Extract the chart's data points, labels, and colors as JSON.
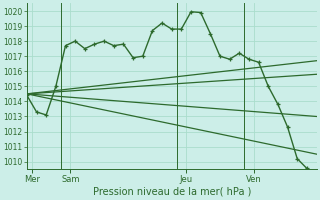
{
  "bg_color": "#cceee8",
  "grid_color": "#aaddcc",
  "line_color": "#2d6a2d",
  "title": "Pression niveau de la mer( hPa )",
  "ylim": [
    1009.5,
    1020.5
  ],
  "yticks": [
    1010,
    1011,
    1012,
    1013,
    1014,
    1015,
    1016,
    1017,
    1018,
    1019,
    1020
  ],
  "xlim": [
    0,
    30
  ],
  "day_labels": [
    "Mer",
    "Sam",
    "Jeu",
    "Ven"
  ],
  "day_positions": [
    0.5,
    4.5,
    16.5,
    23.5
  ],
  "vline_positions": [
    3.5,
    15.5,
    22.5
  ],
  "line1_x": [
    0,
    1,
    2,
    3,
    4,
    5,
    6,
    7,
    8,
    9,
    10,
    11,
    12,
    13,
    14,
    15,
    16,
    17,
    18,
    19,
    20,
    21,
    22,
    23,
    24,
    25,
    26,
    27,
    28,
    29
  ],
  "line1_y": [
    1014.4,
    1013.3,
    1013.1,
    1015.0,
    1017.7,
    1018.0,
    1017.5,
    1017.8,
    1018.0,
    1017.7,
    1017.8,
    1016.9,
    1017.0,
    1018.7,
    1019.2,
    1018.8,
    1018.8,
    1019.95,
    1019.9,
    1018.5,
    1017.0,
    1016.8,
    1017.2,
    1016.8,
    1016.6,
    1015.0,
    1013.8,
    1012.3,
    1010.2,
    1009.55
  ],
  "line2_x": [
    0,
    30
  ],
  "line2_y": [
    1014.5,
    1016.7
  ],
  "line3_x": [
    0,
    30
  ],
  "line3_y": [
    1014.5,
    1015.8
  ],
  "line4_x": [
    0,
    30
  ],
  "line4_y": [
    1014.5,
    1010.5
  ],
  "line5_x": [
    0,
    30
  ],
  "line5_y": [
    1014.5,
    1013.0
  ]
}
